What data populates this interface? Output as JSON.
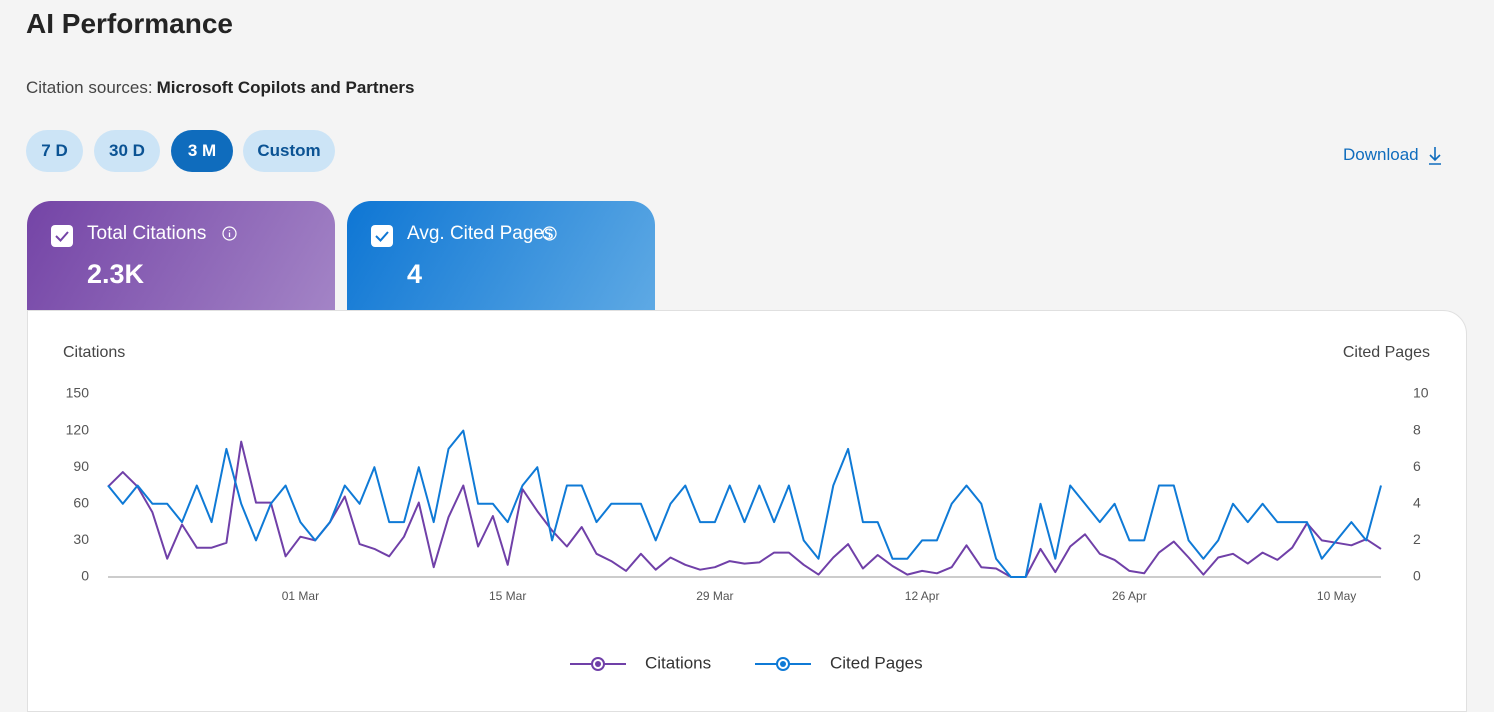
{
  "header": {
    "title": "AI Performance",
    "sources_label": "Citation sources:",
    "sources_value": "Microsoft Copilots and Partners"
  },
  "range_buttons": [
    "7 D",
    "30 D",
    "3 M",
    "Custom"
  ],
  "active_range": 2,
  "download": "Download",
  "cards": [
    {
      "label": "Total Citations",
      "value": "2.3K"
    },
    {
      "label": "Avg. Cited Pages",
      "value": 4
    }
  ],
  "chart_data": {
    "type": "line",
    "y_label": "Citations",
    "y2_label": "Cited Pages",
    "categories": [
      null,
      null,
      null,
      null,
      null,
      null,
      null,
      null,
      null,
      null,
      null,
      null,
      null,
      "01 Mar",
      null,
      null,
      null,
      null,
      null,
      null,
      null,
      null,
      null,
      null,
      null,
      null,
      null,
      "15 Mar",
      null,
      null,
      null,
      null,
      null,
      null,
      null,
      null,
      null,
      null,
      null,
      null,
      null,
      "29 Mar",
      null,
      null,
      null,
      null,
      null,
      null,
      null,
      null,
      null,
      null,
      null,
      null,
      null,
      "12 Apr",
      null,
      null,
      null,
      null,
      null,
      null,
      null,
      null,
      null,
      null,
      null,
      null,
      null,
      "26 Apr",
      null,
      null,
      null,
      null,
      null,
      null,
      null,
      null,
      null,
      null,
      null,
      null,
      null,
      "10 May",
      null,
      null,
      null
    ],
    "series": [
      {
        "name": "Citations",
        "color": "#7040a8",
        "axis": "y",
        "values": [
          74,
          86,
          74,
          53,
          15,
          43,
          24,
          24,
          28,
          111,
          61,
          61,
          17,
          33,
          30,
          45,
          66,
          27,
          23,
          17,
          33,
          61,
          8,
          49,
          75,
          25,
          50,
          10,
          72,
          54,
          38,
          25,
          41,
          19,
          13,
          5,
          19,
          6,
          16,
          10,
          6,
          8,
          13,
          11,
          12,
          20,
          20,
          10,
          2,
          16,
          27,
          7,
          18,
          9,
          2,
          5,
          3,
          8,
          26,
          8,
          7,
          0,
          0,
          23,
          4,
          25,
          35,
          19,
          14,
          5,
          3,
          20,
          29,
          16,
          2,
          16,
          19,
          11,
          20,
          14,
          24,
          44,
          30,
          28,
          26,
          31,
          23
        ]
      },
      {
        "name": "Cited Pages",
        "color": "#0f7ad6",
        "axis": "y2",
        "values": [
          5,
          4,
          5,
          4,
          4,
          3,
          5,
          3,
          7,
          4,
          2,
          4,
          5,
          3,
          2,
          3,
          5,
          4,
          6,
          3,
          3,
          6,
          3,
          7,
          8,
          4,
          4,
          3,
          5,
          6,
          2,
          5,
          5,
          3,
          4,
          4,
          4,
          2,
          4,
          5,
          3,
          3,
          5,
          3,
          5,
          3,
          5,
          2,
          1,
          5,
          7,
          3,
          3,
          1,
          1,
          2,
          2,
          4,
          5,
          4,
          1,
          0,
          0,
          4,
          1,
          5,
          4,
          3,
          4,
          2,
          2,
          5,
          5,
          2,
          1,
          2,
          4,
          3,
          4,
          3,
          3,
          3,
          1,
          2,
          3,
          2,
          5
        ]
      }
    ],
    "ylim": [
      0,
      150
    ],
    "yticks": [
      0,
      30,
      60,
      90,
      120,
      150
    ],
    "y2lim": [
      0,
      10
    ],
    "y2ticks": [
      0,
      2,
      4,
      6,
      8,
      10
    ],
    "grid": false,
    "legend": "bottom"
  }
}
